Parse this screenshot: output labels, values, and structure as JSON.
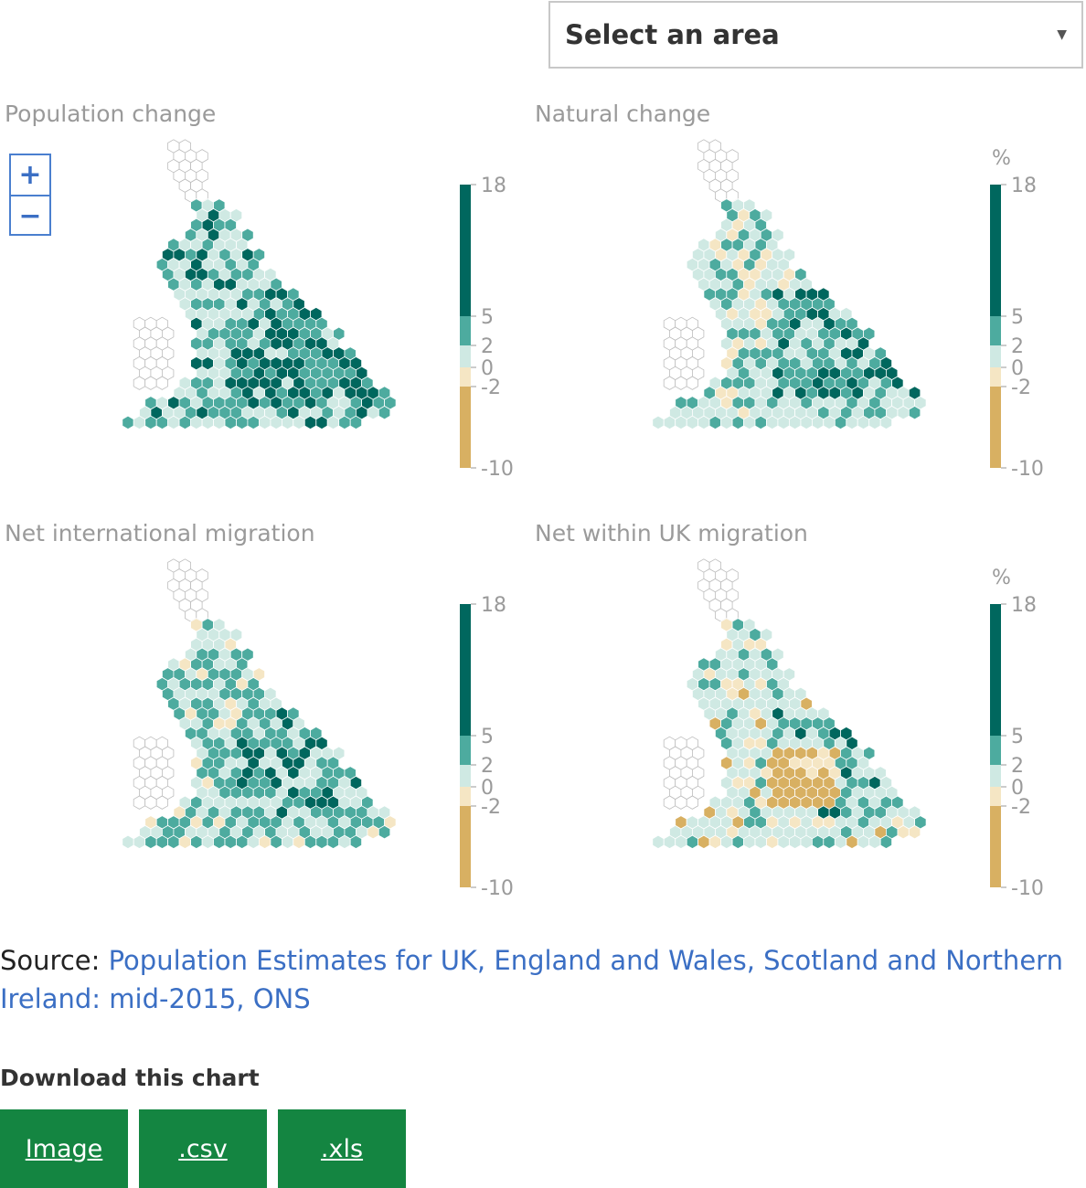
{
  "select": {
    "label": "Select an area",
    "caret_icon": "caret-down-icon"
  },
  "zoom": {
    "plus": "+",
    "minus": "−"
  },
  "colors": {
    "dark_teal": "#00675e",
    "mid_teal": "#4dab9f",
    "light_teal": "#cfe9e3",
    "cream": "#f5e6c4",
    "gold": "#d8b062",
    "outline": "#bdbdbd",
    "link": "#3b6fc4",
    "button": "#148541"
  },
  "legend": {
    "ticks": [
      "18",
      "5",
      "2",
      "0",
      "-2",
      "-10"
    ],
    "unit": "%"
  },
  "chart_data": [
    {
      "type": "heatmap",
      "title": "Population change",
      "legend_ticks": [
        18,
        5,
        2,
        0,
        -2,
        -10
      ],
      "bins": [
        [
          5,
          18
        ],
        [
          2,
          5
        ],
        [
          0,
          2
        ],
        [
          -2,
          0
        ],
        [
          -10,
          -2
        ]
      ],
      "show_unit": false
    },
    {
      "type": "heatmap",
      "title": "Natural change",
      "legend_ticks": [
        18,
        5,
        2,
        0,
        -2,
        -10
      ],
      "bins": [
        [
          5,
          18
        ],
        [
          2,
          5
        ],
        [
          0,
          2
        ],
        [
          -2,
          0
        ],
        [
          -10,
          -2
        ]
      ],
      "show_unit": true,
      "unit": "%"
    },
    {
      "type": "heatmap",
      "title": "Net international migration",
      "legend_ticks": [
        18,
        5,
        2,
        0,
        -2,
        -10
      ],
      "bins": [
        [
          5,
          18
        ],
        [
          2,
          5
        ],
        [
          0,
          2
        ],
        [
          -2,
          0
        ],
        [
          -10,
          -2
        ]
      ],
      "show_unit": false
    },
    {
      "type": "heatmap",
      "title": "Net within UK migration",
      "legend_ticks": [
        18,
        5,
        2,
        0,
        -2,
        -10
      ],
      "bins": [
        [
          5,
          18
        ],
        [
          2,
          5
        ],
        [
          0,
          2
        ],
        [
          -2,
          0
        ],
        [
          -10,
          -2
        ]
      ],
      "show_unit": true,
      "unit": "%"
    }
  ],
  "source": {
    "prefix": "Source: ",
    "link_text": "Population Estimates for UK, England and Wales, Scotland and Northern Ireland: mid-2015, ONS"
  },
  "download": {
    "title": "Download this chart",
    "buttons": [
      "Image",
      ".csv",
      ".xls"
    ]
  }
}
